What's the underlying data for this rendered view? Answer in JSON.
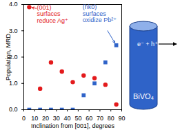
{
  "chart_data": {
    "type": "scatter",
    "x_label": "Inclination from [001], degrees",
    "y_label": "Population, MRD",
    "xlim": [
      0,
      90
    ],
    "xticks": [
      0,
      10,
      20,
      30,
      40,
      50,
      60,
      70,
      80,
      90
    ],
    "ylim": [
      0,
      4
    ],
    "yticks": [
      0,
      1,
      2,
      3,
      4
    ],
    "series": [
      {
        "name": "(001) surfaces reduce Ag⁺",
        "color": "#e31a1c",
        "marker": "circle",
        "x": [
          5,
          15,
          25,
          35,
          45,
          55,
          65,
          75,
          85
        ],
        "values": [
          3.9,
          0.8,
          1.8,
          1.45,
          1.05,
          1.3,
          1.2,
          0.95,
          0.2
        ]
      },
      {
        "name": "(hk0) surfaces oxidize Pb²⁺",
        "color": "#2f63c8",
        "marker": "square",
        "x": [
          5,
          15,
          25,
          35,
          45,
          55,
          65,
          75,
          85
        ],
        "values": [
          0,
          0,
          0,
          0,
          0,
          0.55,
          1.0,
          1.8,
          2.45
        ]
      }
    ],
    "annotations": [
      {
        "text": [
          "(001)",
          "surfaces",
          "reduce Ag⁺"
        ],
        "color": "#e31a1c"
      },
      {
        "text": [
          "(hk0)",
          "surfaces",
          "oxidize Pb²⁺"
        ],
        "color": "#2f63c8"
      }
    ]
  },
  "diagram": {
    "label": "BiVO₄",
    "reaction": "e⁻ + h⁺",
    "color": "#2f63c8"
  }
}
